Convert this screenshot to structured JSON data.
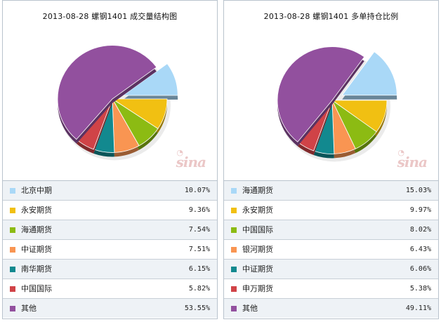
{
  "chart_data": [
    {
      "type": "pie",
      "title": "2013-08-28 螺钢1401 成交量结构图",
      "slices": [
        {
          "label": "北京中期",
          "value": 10.07,
          "display": "10.07%",
          "color": "#a9d8f7",
          "exploded": true
        },
        {
          "label": "永安期货",
          "value": 9.36,
          "display": "9.36%",
          "color": "#f1c012"
        },
        {
          "label": "海通期货",
          "value": 7.54,
          "display": "7.54%",
          "color": "#8cbb13"
        },
        {
          "label": "中证期货",
          "value": 7.51,
          "display": "7.51%",
          "color": "#f99552"
        },
        {
          "label": "南华期货",
          "value": 6.15,
          "display": "6.15%",
          "color": "#12898f"
        },
        {
          "label": "中国国际",
          "value": 5.82,
          "display": "5.82%",
          "color": "#d04347"
        },
        {
          "label": "其他",
          "value": 53.55,
          "display": "53.55%",
          "color": "#92509e"
        }
      ]
    },
    {
      "type": "pie",
      "title": "2013-08-28 螺钢1401 多单持仓比例",
      "slices": [
        {
          "label": "海通期货",
          "value": 15.03,
          "display": "15.03%",
          "color": "#a9d8f7",
          "exploded": true
        },
        {
          "label": "永安期货",
          "value": 9.97,
          "display": "9.97%",
          "color": "#f1c012"
        },
        {
          "label": "中国国际",
          "value": 8.02,
          "display": "8.02%",
          "color": "#8cbb13"
        },
        {
          "label": "银河期货",
          "value": 6.43,
          "display": "6.43%",
          "color": "#f99552"
        },
        {
          "label": "中证期货",
          "value": 6.06,
          "display": "6.06%",
          "color": "#12898f"
        },
        {
          "label": "申万期货",
          "value": 5.38,
          "display": "5.38%",
          "color": "#d04347"
        },
        {
          "label": "其他",
          "value": 49.11,
          "display": "49.11%",
          "color": "#92509e"
        }
      ]
    }
  ],
  "watermark": "sina"
}
